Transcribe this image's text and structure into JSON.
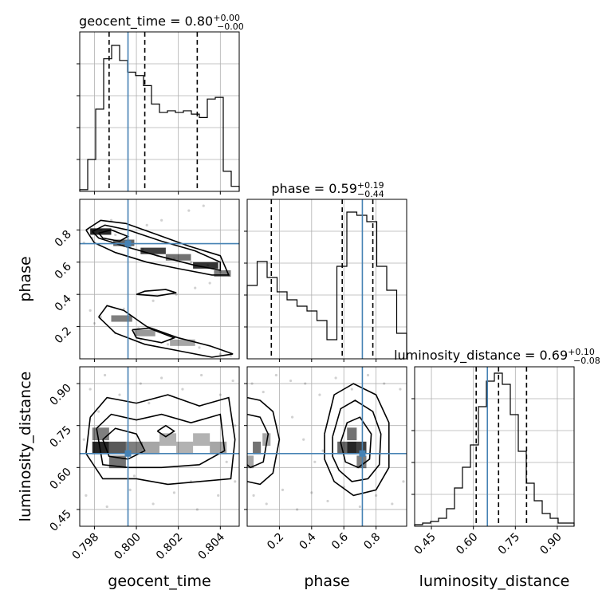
{
  "chart_data": {
    "type": "corner",
    "parameters": [
      "geocent_time",
      "phase",
      "luminosity_distance"
    ],
    "truths": {
      "geocent_time": 0.7996,
      "phase": 0.715,
      "luminosity_distance": 0.65
    },
    "titles": {
      "geocent_time": {
        "text": "geocent_time = 0.80",
        "plus": "+0.00",
        "minus": "−0.00"
      },
      "phase": {
        "text": "phase = 0.59",
        "plus": "+0.19",
        "minus": "−0.44"
      },
      "luminosity_distance": {
        "text": "luminosity_distance = 0.69",
        "plus": "+0.10",
        "minus": "−0.08"
      }
    },
    "ranges": {
      "geocent_time": [
        0.7973,
        0.8049
      ],
      "phase": [
        0.0,
        0.99
      ],
      "luminosity_distance": [
        0.39,
        0.96
      ]
    },
    "ticks": {
      "geocent_time": [
        "0.798",
        "0.800",
        "0.802",
        "0.804"
      ],
      "phase": [
        "0.2",
        "0.4",
        "0.6",
        "0.8"
      ],
      "luminosity_distance": [
        "0.45",
        "0.60",
        "0.75",
        "0.90"
      ]
    },
    "quantiles": {
      "geocent_time": [
        0.7987,
        0.8004,
        0.8029
      ],
      "phase": [
        0.15,
        0.59,
        0.78
      ],
      "luminosity_distance": [
        0.61,
        0.69,
        0.79
      ]
    },
    "histograms": {
      "geocent_time": [
        1,
        19,
        49,
        79,
        87,
        78,
        71,
        69,
        63,
        52,
        47,
        48,
        47,
        48,
        46,
        44,
        55,
        56,
        12,
        3
      ],
      "phase": [
        46,
        61,
        51,
        42,
        37,
        33,
        30,
        24,
        12,
        58,
        92,
        90,
        86,
        58,
        43,
        16
      ],
      "luminosity_distance": [
        1,
        2,
        3,
        5,
        11,
        24,
        37,
        51,
        75,
        91,
        96,
        89,
        70,
        47,
        27,
        16,
        8,
        5,
        2,
        2
      ]
    },
    "hist_max": {
      "geocent_time": 95,
      "phase": 100,
      "luminosity_distance": 100
    },
    "scatter_samples": {
      "geocent_time_vs_phase": [
        [
          0.7979,
          0.75
        ],
        [
          0.7983,
          0.8
        ],
        [
          0.799,
          0.77
        ],
        [
          0.7996,
          0.72
        ],
        [
          0.8003,
          0.68
        ],
        [
          0.801,
          0.64
        ],
        [
          0.8018,
          0.62
        ],
        [
          0.8026,
          0.6
        ],
        [
          0.8034,
          0.58
        ],
        [
          0.804,
          0.54
        ],
        [
          0.8012,
          0.86
        ],
        [
          0.8025,
          0.92
        ],
        [
          0.8032,
          0.95
        ],
        [
          0.8005,
          0.83
        ],
        [
          0.7988,
          0.86
        ],
        [
          0.8019,
          0.4
        ],
        [
          0.8028,
          0.44
        ],
        [
          0.8035,
          0.47
        ],
        [
          0.8008,
          0.36
        ],
        [
          0.7994,
          0.31
        ],
        [
          0.7983,
          0.26
        ],
        [
          0.798,
          0.22
        ],
        [
          0.799,
          0.16
        ],
        [
          0.8002,
          0.12
        ],
        [
          0.8015,
          0.09
        ],
        [
          0.803,
          0.07
        ],
        [
          0.804,
          0.03
        ],
        [
          0.8045,
          0.02
        ],
        [
          0.7975,
          0.72
        ],
        [
          0.8044,
          0.52
        ],
        [
          0.8001,
          0.19
        ],
        [
          0.7978,
          0.3
        ]
      ],
      "geocent_time_vs_luminosity_distance": [
        [
          0.7978,
          0.88
        ],
        [
          0.7985,
          0.93
        ],
        [
          0.7992,
          0.86
        ],
        [
          0.8002,
          0.9
        ],
        [
          0.8012,
          0.92
        ],
        [
          0.8022,
          0.88
        ],
        [
          0.8031,
          0.93
        ],
        [
          0.804,
          0.86
        ],
        [
          0.8046,
          0.91
        ],
        [
          0.7976,
          0.5
        ],
        [
          0.7986,
          0.46
        ],
        [
          0.7997,
          0.52
        ],
        [
          0.8008,
          0.47
        ],
        [
          0.8018,
          0.51
        ],
        [
          0.8029,
          0.45
        ],
        [
          0.8039,
          0.5
        ],
        [
          0.8047,
          0.55
        ],
        [
          0.7975,
          0.7
        ],
        [
          0.8047,
          0.75
        ],
        [
          0.7982,
          0.8
        ],
        [
          0.8043,
          0.62
        ],
        [
          0.8006,
          0.83
        ],
        [
          0.8026,
          0.55
        ],
        [
          0.7999,
          0.57
        ]
      ],
      "phase_vs_luminosity_distance": [
        [
          0.03,
          0.9
        ],
        [
          0.1,
          0.87
        ],
        [
          0.18,
          0.93
        ],
        [
          0.27,
          0.91
        ],
        [
          0.36,
          0.9
        ],
        [
          0.45,
          0.86
        ],
        [
          0.55,
          0.92
        ],
        [
          0.65,
          0.88
        ],
        [
          0.75,
          0.93
        ],
        [
          0.85,
          0.9
        ],
        [
          0.95,
          0.88
        ],
        [
          0.04,
          0.5
        ],
        [
          0.12,
          0.47
        ],
        [
          0.22,
          0.52
        ],
        [
          0.31,
          0.45
        ],
        [
          0.4,
          0.51
        ],
        [
          0.5,
          0.48
        ],
        [
          0.6,
          0.53
        ],
        [
          0.7,
          0.46
        ],
        [
          0.8,
          0.5
        ],
        [
          0.9,
          0.47
        ],
        [
          0.97,
          0.55
        ],
        [
          0.35,
          0.7
        ],
        [
          0.42,
          0.62
        ],
        [
          0.28,
          0.78
        ],
        [
          0.47,
          0.66
        ]
      ]
    },
    "density_2d": {
      "geocent_time_vs_phase": [
        {
          "x": 0.7983,
          "y": 0.79,
          "w": 0.001,
          "h": 0.04,
          "level": 0.85
        },
        {
          "x": 0.7994,
          "y": 0.72,
          "w": 0.001,
          "h": 0.04,
          "level": 0.6
        },
        {
          "x": 0.8008,
          "y": 0.67,
          "w": 0.0012,
          "h": 0.04,
          "level": 0.75
        },
        {
          "x": 0.802,
          "y": 0.63,
          "w": 0.0012,
          "h": 0.04,
          "level": 0.55
        },
        {
          "x": 0.8033,
          "y": 0.58,
          "w": 0.0012,
          "h": 0.04,
          "level": 0.8
        },
        {
          "x": 0.8041,
          "y": 0.53,
          "w": 0.0008,
          "h": 0.04,
          "level": 0.5
        },
        {
          "x": 0.7993,
          "y": 0.25,
          "w": 0.001,
          "h": 0.04,
          "level": 0.5
        },
        {
          "x": 0.8004,
          "y": 0.16,
          "w": 0.001,
          "h": 0.04,
          "level": 0.4
        },
        {
          "x": 0.8022,
          "y": 0.1,
          "w": 0.0012,
          "h": 0.04,
          "level": 0.35
        }
      ],
      "geocent_time_vs_luminosity_distance": [
        {
          "x": 0.7983,
          "y": 0.67,
          "w": 0.0008,
          "h": 0.045,
          "level": 0.85
        },
        {
          "x": 0.7991,
          "y": 0.67,
          "w": 0.0008,
          "h": 0.045,
          "level": 0.65
        },
        {
          "x": 0.7999,
          "y": 0.67,
          "w": 0.0008,
          "h": 0.045,
          "level": 0.5
        },
        {
          "x": 0.7983,
          "y": 0.72,
          "w": 0.0008,
          "h": 0.045,
          "level": 0.5
        },
        {
          "x": 0.7991,
          "y": 0.62,
          "w": 0.0008,
          "h": 0.045,
          "level": 0.55
        },
        {
          "x": 0.8007,
          "y": 0.67,
          "w": 0.0008,
          "h": 0.045,
          "level": 0.35
        },
        {
          "x": 0.8015,
          "y": 0.7,
          "w": 0.0008,
          "h": 0.045,
          "level": 0.3
        },
        {
          "x": 0.8023,
          "y": 0.67,
          "w": 0.0008,
          "h": 0.045,
          "level": 0.3
        },
        {
          "x": 0.8031,
          "y": 0.7,
          "w": 0.0008,
          "h": 0.045,
          "level": 0.3
        },
        {
          "x": 0.8039,
          "y": 0.67,
          "w": 0.0008,
          "h": 0.045,
          "level": 0.35
        }
      ],
      "phase_vs_luminosity_distance": [
        {
          "x": 0.65,
          "y": 0.67,
          "w": 0.06,
          "h": 0.045,
          "level": 0.85
        },
        {
          "x": 0.71,
          "y": 0.67,
          "w": 0.06,
          "h": 0.045,
          "level": 0.75
        },
        {
          "x": 0.59,
          "y": 0.67,
          "w": 0.06,
          "h": 0.045,
          "level": 0.6
        },
        {
          "x": 0.65,
          "y": 0.72,
          "w": 0.06,
          "h": 0.045,
          "level": 0.55
        },
        {
          "x": 0.71,
          "y": 0.62,
          "w": 0.06,
          "h": 0.045,
          "level": 0.5
        },
        {
          "x": 0.06,
          "y": 0.67,
          "w": 0.05,
          "h": 0.045,
          "level": 0.55
        },
        {
          "x": 0.12,
          "y": 0.7,
          "w": 0.05,
          "h": 0.045,
          "level": 0.35
        },
        {
          "x": 0.02,
          "y": 0.62,
          "w": 0.04,
          "h": 0.045,
          "level": 0.35
        }
      ]
    },
    "contours": {
      "geocent_time_vs_phase": [
        [
          [
            0.7976,
            0.8
          ],
          [
            0.7983,
            0.86
          ],
          [
            0.7995,
            0.84
          ],
          [
            0.801,
            0.77
          ],
          [
            0.8025,
            0.7
          ],
          [
            0.804,
            0.64
          ],
          [
            0.8044,
            0.52
          ],
          [
            0.8036,
            0.52
          ],
          [
            0.802,
            0.56
          ],
          [
            0.8005,
            0.6
          ],
          [
            0.799,
            0.66
          ],
          [
            0.798,
            0.72
          ],
          [
            0.7976,
            0.8
          ]
        ],
        [
          [
            0.7979,
            0.79
          ],
          [
            0.7985,
            0.83
          ],
          [
            0.7996,
            0.8
          ],
          [
            0.8012,
            0.73
          ],
          [
            0.8028,
            0.67
          ],
          [
            0.804,
            0.6
          ],
          [
            0.804,
            0.55
          ],
          [
            0.8028,
            0.58
          ],
          [
            0.801,
            0.64
          ],
          [
            0.7994,
            0.7
          ],
          [
            0.7982,
            0.75
          ],
          [
            0.7979,
            0.79
          ]
        ],
        [
          [
            0.7982,
            0.78
          ],
          [
            0.7988,
            0.8
          ],
          [
            0.7996,
            0.76
          ],
          [
            0.7992,
            0.73
          ],
          [
            0.7984,
            0.75
          ],
          [
            0.7982,
            0.78
          ]
        ],
        [
          [
            0.7982,
            0.26
          ],
          [
            0.7986,
            0.33
          ],
          [
            0.7994,
            0.3
          ],
          [
            0.8005,
            0.2
          ],
          [
            0.802,
            0.13
          ],
          [
            0.8035,
            0.08
          ],
          [
            0.8046,
            0.03
          ],
          [
            0.8036,
            0.01
          ],
          [
            0.802,
            0.05
          ],
          [
            0.8004,
            0.09
          ],
          [
            0.799,
            0.16
          ],
          [
            0.7982,
            0.26
          ]
        ],
        [
          [
            0.7998,
            0.18
          ],
          [
            0.8006,
            0.19
          ],
          [
            0.8018,
            0.13
          ],
          [
            0.8012,
            0.1
          ],
          [
            0.8,
            0.13
          ],
          [
            0.7998,
            0.18
          ]
        ],
        [
          [
            0.8,
            0.4
          ],
          [
            0.8004,
            0.42
          ],
          [
            0.8014,
            0.43
          ],
          [
            0.8019,
            0.41
          ],
          [
            0.801,
            0.39
          ],
          [
            0.8,
            0.4
          ]
        ]
      ],
      "geocent_time_vs_luminosity_distance": [
        [
          [
            0.7978,
            0.78
          ],
          [
            0.7986,
            0.85
          ],
          [
            0.8,
            0.83
          ],
          [
            0.8015,
            0.86
          ],
          [
            0.803,
            0.82
          ],
          [
            0.8044,
            0.85
          ],
          [
            0.8047,
            0.7
          ],
          [
            0.8045,
            0.56
          ],
          [
            0.803,
            0.55
          ],
          [
            0.8015,
            0.54
          ],
          [
            0.8,
            0.56
          ],
          [
            0.7984,
            0.56
          ],
          [
            0.7976,
            0.65
          ],
          [
            0.7978,
            0.78
          ]
        ],
        [
          [
            0.7981,
            0.74
          ],
          [
            0.7988,
            0.79
          ],
          [
            0.8,
            0.77
          ],
          [
            0.8012,
            0.79
          ],
          [
            0.8026,
            0.76
          ],
          [
            0.804,
            0.79
          ],
          [
            0.8042,
            0.66
          ],
          [
            0.803,
            0.61
          ],
          [
            0.8012,
            0.6
          ],
          [
            0.7996,
            0.6
          ],
          [
            0.7984,
            0.61
          ],
          [
            0.7981,
            0.74
          ]
        ],
        [
          [
            0.7984,
            0.7
          ],
          [
            0.799,
            0.74
          ],
          [
            0.8,
            0.72
          ],
          [
            0.8004,
            0.66
          ],
          [
            0.7996,
            0.63
          ],
          [
            0.7987,
            0.64
          ],
          [
            0.7984,
            0.7
          ]
        ],
        [
          [
            0.801,
            0.73
          ],
          [
            0.8014,
            0.75
          ],
          [
            0.8018,
            0.73
          ],
          [
            0.8014,
            0.71
          ],
          [
            0.801,
            0.73
          ]
        ]
      ],
      "phase_vs_luminosity_distance": [
        [
          [
            0.0,
            0.85
          ],
          [
            0.08,
            0.84
          ],
          [
            0.16,
            0.8
          ],
          [
            0.2,
            0.7
          ],
          [
            0.16,
            0.58
          ],
          [
            0.08,
            0.54
          ],
          [
            0.0,
            0.55
          ]
        ],
        [
          [
            0.0,
            0.79
          ],
          [
            0.08,
            0.78
          ],
          [
            0.13,
            0.72
          ],
          [
            0.1,
            0.62
          ],
          [
            0.02,
            0.6
          ],
          [
            0.0,
            0.61
          ]
        ],
        [
          [
            0.48,
            0.72
          ],
          [
            0.54,
            0.86
          ],
          [
            0.66,
            0.9
          ],
          [
            0.8,
            0.86
          ],
          [
            0.88,
            0.76
          ],
          [
            0.88,
            0.6
          ],
          [
            0.8,
            0.52
          ],
          [
            0.66,
            0.5
          ],
          [
            0.54,
            0.55
          ],
          [
            0.48,
            0.63
          ],
          [
            0.48,
            0.72
          ]
        ],
        [
          [
            0.53,
            0.71
          ],
          [
            0.58,
            0.81
          ],
          [
            0.67,
            0.84
          ],
          [
            0.78,
            0.8
          ],
          [
            0.83,
            0.72
          ],
          [
            0.82,
            0.61
          ],
          [
            0.75,
            0.56
          ],
          [
            0.65,
            0.55
          ],
          [
            0.57,
            0.59
          ],
          [
            0.53,
            0.64
          ],
          [
            0.53,
            0.71
          ]
        ],
        [
          [
            0.58,
            0.69
          ],
          [
            0.62,
            0.76
          ],
          [
            0.7,
            0.78
          ],
          [
            0.77,
            0.72
          ],
          [
            0.76,
            0.63
          ],
          [
            0.69,
            0.6
          ],
          [
            0.61,
            0.62
          ],
          [
            0.58,
            0.69
          ]
        ]
      ]
    }
  }
}
